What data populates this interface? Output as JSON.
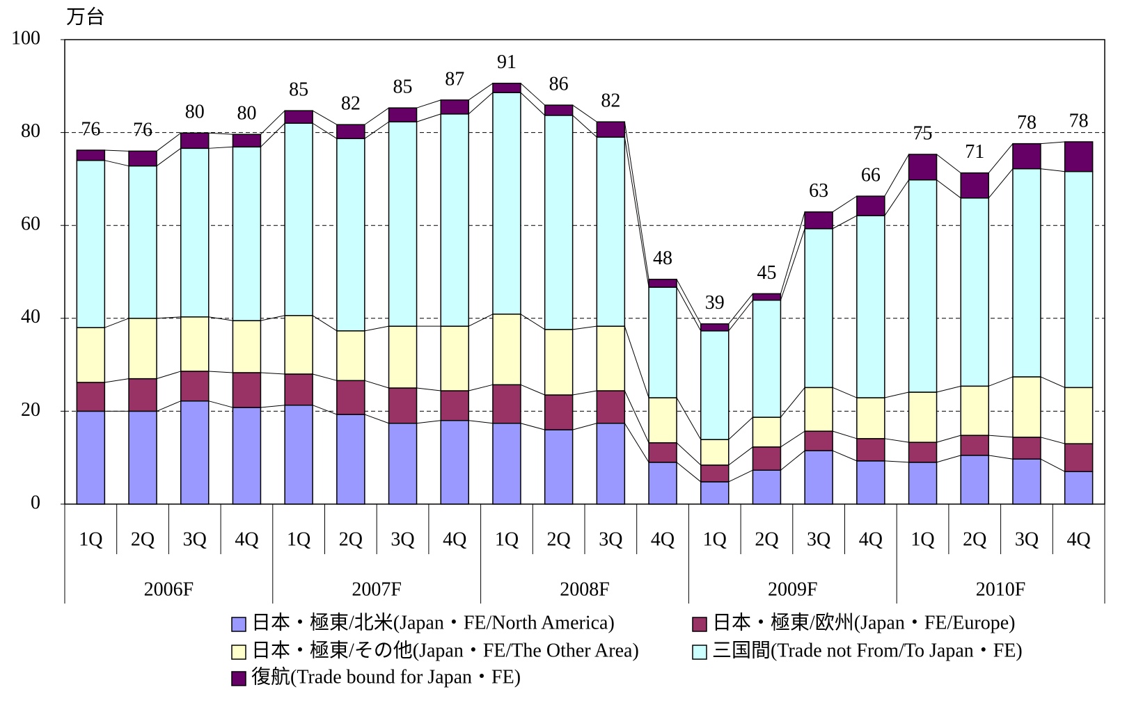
{
  "chart_data": {
    "type": "stacked-bar",
    "unit_label": "万台",
    "categories": [
      "1Q",
      "2Q",
      "3Q",
      "4Q",
      "1Q",
      "2Q",
      "3Q",
      "4Q",
      "1Q",
      "2Q",
      "3Q",
      "4Q",
      "1Q",
      "2Q",
      "3Q",
      "4Q",
      "1Q",
      "2Q",
      "3Q",
      "4Q"
    ],
    "groups": [
      {
        "label": "2006F",
        "size": 4
      },
      {
        "label": "2007F",
        "size": 4
      },
      {
        "label": "2008F",
        "size": 4
      },
      {
        "label": "2009F",
        "size": 4
      },
      {
        "label": "2010F",
        "size": 4
      }
    ],
    "series": [
      {
        "name": "日本・極東/北米(Japan・FE/North America)",
        "color": "#9999ff",
        "values": [
          20,
          20,
          22.2,
          20.8,
          21.3,
          19.3,
          17.4,
          18,
          17.4,
          16,
          17.4,
          9,
          4.8,
          7.3,
          11.5,
          9.3,
          9,
          10.5,
          9.7,
          7
        ]
      },
      {
        "name": "日本・極東/欧州(Japan・FE/Europe)",
        "color": "#993366",
        "values": [
          6.2,
          7,
          6.4,
          7.5,
          6.7,
          7.3,
          7.6,
          6.4,
          8.3,
          7.5,
          7,
          4.2,
          3.6,
          5,
          4.2,
          4.8,
          4.3,
          4.3,
          4.7,
          6
        ]
      },
      {
        "name": "日本・極東/その他(Japan・FE/The Other Area)",
        "color": "#ffffcc",
        "values": [
          11.8,
          13,
          11.7,
          11.2,
          12.6,
          10.7,
          13.3,
          13.9,
          15.2,
          14.1,
          13.9,
          9.7,
          5.5,
          6.4,
          9.4,
          8.8,
          10.8,
          10.6,
          13,
          12.1
        ]
      },
      {
        "name": "三国間(Trade not From/To Japan・FE)",
        "color": "#ccffff",
        "values": [
          36,
          32.8,
          36.3,
          37.4,
          41.4,
          41.4,
          44,
          45.7,
          47.7,
          46.1,
          40.7,
          23.8,
          23.4,
          25.2,
          34.2,
          39.2,
          45.7,
          40.5,
          44.8,
          46.5
        ]
      },
      {
        "name": "復航(Trade bound for Japan・FE)",
        "color": "#660066",
        "values": [
          2.2,
          3.2,
          3.3,
          2.7,
          2.7,
          3,
          3,
          3,
          2,
          2.2,
          3.3,
          1.7,
          1.5,
          1.4,
          3.6,
          4.2,
          5.5,
          5.4,
          5.4,
          6.4
        ]
      }
    ],
    "totals": [
      76,
      76,
      80,
      80,
      85,
      82,
      85,
      87,
      91,
      86,
      82,
      48,
      39,
      45,
      63,
      66,
      75,
      71,
      78,
      78
    ],
    "ylim": [
      0,
      100
    ],
    "yticks": [
      0,
      20,
      40,
      60,
      80,
      100
    ],
    "grid": true
  }
}
